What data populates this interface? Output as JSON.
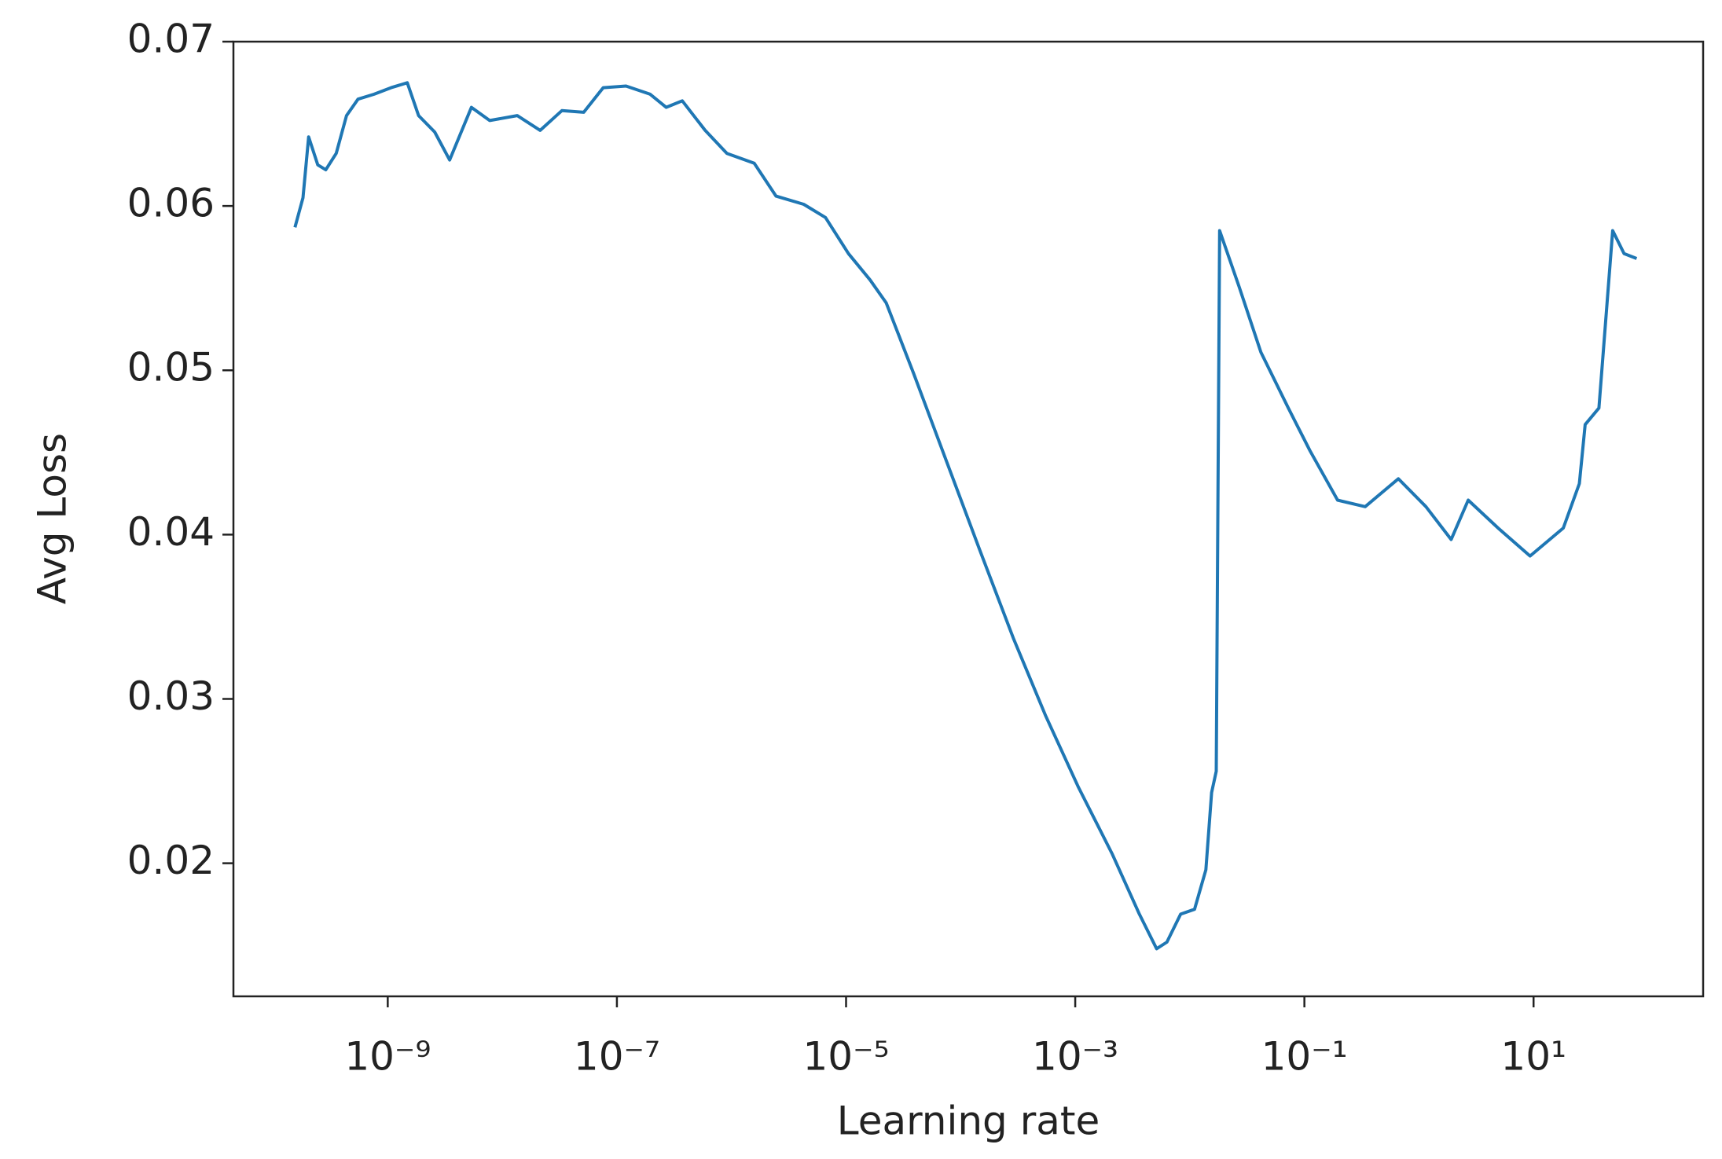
{
  "chart_data": {
    "type": "line",
    "xlabel": "Learning rate",
    "ylabel": "Avg Loss",
    "xscale": "log",
    "grid": false,
    "xlim": [
      4.5e-11,
      302
    ],
    "ylim": [
      0.0119,
      0.07
    ],
    "xticks": [
      {
        "value": 1e-09,
        "label": "10⁻⁹"
      },
      {
        "value": 1e-07,
        "label": "10⁻⁷"
      },
      {
        "value": 1e-05,
        "label": "10⁻⁵"
      },
      {
        "value": 0.001,
        "label": "10⁻³"
      },
      {
        "value": 0.1,
        "label": "10⁻¹"
      },
      {
        "value": 10,
        "label": "10¹"
      }
    ],
    "yticks": [
      0.02,
      0.03,
      0.04,
      0.05,
      0.06,
      0.07
    ],
    "x": [
      1.55e-10,
      1.82e-10,
      2.04e-10,
      2.45e-10,
      2.88e-10,
      3.55e-10,
      4.37e-10,
      5.5e-10,
      7.6e-10,
      1.07e-09,
      1.48e-09,
      1.86e-09,
      2.57e-09,
      3.47e-09,
      5.37e-09,
      7.76e-09,
      1.35e-08,
      2.14e-08,
      3.31e-08,
      5.13e-08,
      7.59e-08,
      1.2e-07,
      1.95e-07,
      2.69e-07,
      3.72e-07,
      5.89e-07,
      9.12e-07,
      1.58e-06,
      2.45e-06,
      4.27e-06,
      6.61e-06,
      1.05e-05,
      1.62e-05,
      2.24e-05,
      3.89e-05,
      7.59e-05,
      0.000148,
      0.000288,
      0.00055,
      0.00107,
      0.00209,
      0.00363,
      0.00513,
      0.00631,
      0.00832,
      0.011,
      0.0138,
      0.0155,
      0.017,
      0.0182,
      0.0269,
      0.0417,
      0.0724,
      0.112,
      0.195,
      0.339,
      0.661,
      1.15,
      1.91,
      2.69,
      4.9,
      9.33,
      18.2,
      25.1,
      28.2,
      37.2,
      49,
      61.7,
      79.4
    ],
    "series": [
      {
        "name": "Avg Loss",
        "color": "#1f77b4",
        "values": [
          0.0587,
          0.0605,
          0.0642,
          0.0625,
          0.0622,
          0.0632,
          0.0655,
          0.0665,
          0.0668,
          0.0672,
          0.0675,
          0.0655,
          0.0645,
          0.0628,
          0.066,
          0.0652,
          0.0655,
          0.0646,
          0.0658,
          0.0657,
          0.0672,
          0.0673,
          0.0668,
          0.066,
          0.0664,
          0.0646,
          0.0632,
          0.0626,
          0.0606,
          0.0601,
          0.0593,
          0.0571,
          0.0555,
          0.0541,
          0.0498,
          0.0444,
          0.039,
          0.0337,
          0.029,
          0.0246,
          0.0206,
          0.0169,
          0.0148,
          0.0152,
          0.0169,
          0.0172,
          0.0196,
          0.0243,
          0.0256,
          0.0585,
          0.0551,
          0.0511,
          0.0477,
          0.0451,
          0.0421,
          0.0417,
          0.0434,
          0.0417,
          0.0397,
          0.0421,
          0.0404,
          0.0387,
          0.0404,
          0.0431,
          0.0467,
          0.0477,
          0.0585,
          0.0571,
          0.0568
        ]
      }
    ]
  }
}
